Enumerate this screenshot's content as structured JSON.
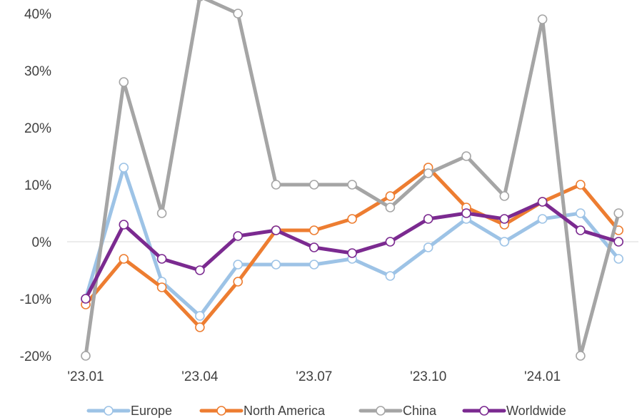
{
  "chart_data": {
    "type": "line",
    "title": "",
    "xlabel": "",
    "ylabel": "",
    "x": [
      "'23.01",
      "'23.02",
      "'23.03",
      "'23.04",
      "'23.05",
      "'23.06",
      "'23.07",
      "'23.08",
      "'23.09",
      "'23.10",
      "'23.11",
      "'23.12",
      "'24.01",
      "'24.02",
      "'24.03"
    ],
    "x_tick_labels": [
      "'23.01",
      "'23.04",
      "'23.07",
      "'23.10",
      "'24.01"
    ],
    "y_tick_labels": [
      "-20%",
      "-10%",
      "0%",
      "10%",
      "20%",
      "30%",
      "40%"
    ],
    "y_ticks": [
      -20,
      -10,
      0,
      10,
      20,
      30,
      40
    ],
    "ylim": [
      -20,
      40
    ],
    "y_unit": "%",
    "grid": false,
    "zero_line": true,
    "legend_position": "bottom",
    "series": [
      {
        "name": "Europe",
        "color": "#9dc3e6",
        "values": [
          -10,
          13,
          -7,
          -13,
          -4,
          -4,
          -4,
          -3,
          -6,
          -1,
          4,
          0,
          4,
          5,
          -3
        ]
      },
      {
        "name": "North America",
        "color": "#ed7d31",
        "values": [
          -11,
          -3,
          -8,
          -15,
          -7,
          2,
          2,
          4,
          8,
          13,
          6,
          3,
          7,
          10,
          2
        ]
      },
      {
        "name": "China",
        "color": "#a5a5a5",
        "values": [
          -20,
          28,
          5,
          43,
          40,
          10,
          10,
          10,
          6,
          12,
          15,
          8,
          39,
          -20,
          5
        ]
      },
      {
        "name": "Worldwide",
        "color": "#7b2a90",
        "values": [
          -10,
          3,
          -3,
          -5,
          1,
          2,
          -1,
          -2,
          0,
          4,
          5,
          4,
          7,
          2,
          0
        ]
      }
    ]
  }
}
